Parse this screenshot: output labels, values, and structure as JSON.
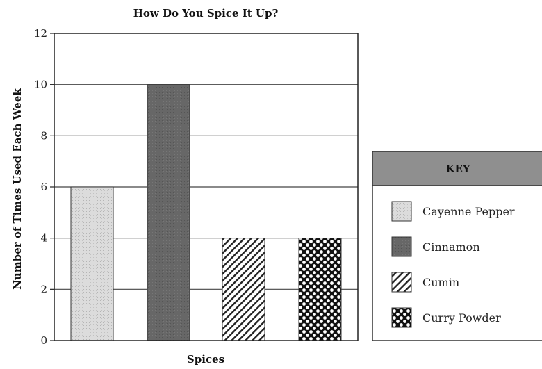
{
  "chart_data": {
    "type": "bar",
    "title": "How Do You Spice It Up?",
    "xlabel": "Spices",
    "ylabel": "Number of Times Used Each Week",
    "categories": [
      "Cayenne Pepper",
      "Cinnamon",
      "Cumin",
      "Curry Powder"
    ],
    "values": [
      6,
      10,
      4,
      4
    ],
    "ylim": [
      0,
      12
    ],
    "yticks": [
      0,
      2,
      4,
      6,
      8,
      10,
      12
    ],
    "grid": true,
    "legend": {
      "title": "KEY",
      "position": "right",
      "items": [
        {
          "label": "Cayenne Pepper",
          "pattern": "light-stipple"
        },
        {
          "label": "Cinnamon",
          "pattern": "dark-solid"
        },
        {
          "label": "Cumin",
          "pattern": "diagonal-hatch"
        },
        {
          "label": "Curry Powder",
          "pattern": "polka-dot"
        }
      ]
    },
    "colors": {
      "cayenne": "#d9d9d9",
      "cinnamon": "#666666",
      "hatch": "#222222",
      "dot_bg": "#111111",
      "legend_header": "#8e8e8e"
    }
  }
}
